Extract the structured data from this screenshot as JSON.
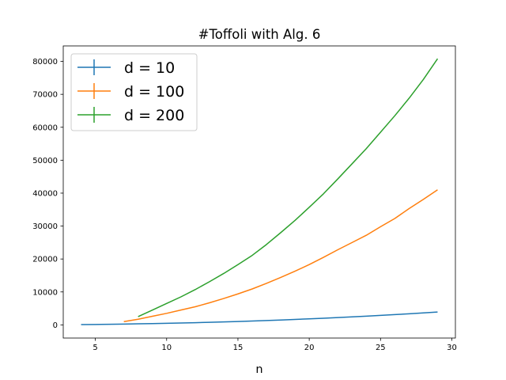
{
  "chart_data": {
    "type": "line",
    "title": "#Toffoli with Alg. 6",
    "xlabel": "n",
    "ylabel": "",
    "xlim": [
      2.75,
      30.25
    ],
    "ylim": [
      -4000,
      84700
    ],
    "xticks": [
      5,
      10,
      15,
      20,
      25,
      30
    ],
    "yticks": [
      0,
      10000,
      20000,
      30000,
      40000,
      50000,
      60000,
      70000,
      80000
    ],
    "grid": false,
    "legend_position": "top-left",
    "series": [
      {
        "name": "d = 10",
        "color": "#1f77b4",
        "x": [
          4,
          5,
          6,
          7,
          8,
          9,
          10,
          11,
          12,
          13,
          14,
          15,
          16,
          17,
          18,
          19,
          20,
          21,
          22,
          23,
          24,
          25,
          26,
          27,
          28,
          29
        ],
        "y": [
          80,
          130,
          190,
          250,
          320,
          400,
          480,
          570,
          670,
          780,
          900,
          1030,
          1170,
          1320,
          1480,
          1650,
          1830,
          2020,
          2220,
          2430,
          2650,
          2880,
          3120,
          3370,
          3630,
          3900
        ]
      },
      {
        "name": "d = 100",
        "color": "#ff7f0e",
        "x": [
          7,
          8,
          9,
          10,
          11,
          12,
          13,
          14,
          15,
          16,
          17,
          18,
          19,
          20,
          21,
          22,
          23,
          24,
          25,
          26,
          27,
          28,
          29
        ],
        "y": [
          1000,
          1700,
          2600,
          3500,
          4500,
          5500,
          6700,
          8000,
          9400,
          10900,
          12600,
          14400,
          16300,
          18300,
          20500,
          22800,
          25000,
          27200,
          29800,
          32300,
          35300,
          38100,
          41000
        ]
      },
      {
        "name": "d = 200",
        "color": "#2ca02c",
        "x": [
          8,
          9,
          10,
          11,
          12,
          13,
          14,
          15,
          16,
          17,
          18,
          19,
          20,
          21,
          22,
          23,
          24,
          25,
          26,
          27,
          28,
          29
        ],
        "y": [
          2500,
          4500,
          6500,
          8500,
          10700,
          13100,
          15600,
          18300,
          21100,
          24400,
          28000,
          31700,
          35700,
          39800,
          44300,
          48900,
          53500,
          58500,
          63500,
          68800,
          74500,
          80800
        ]
      }
    ]
  }
}
